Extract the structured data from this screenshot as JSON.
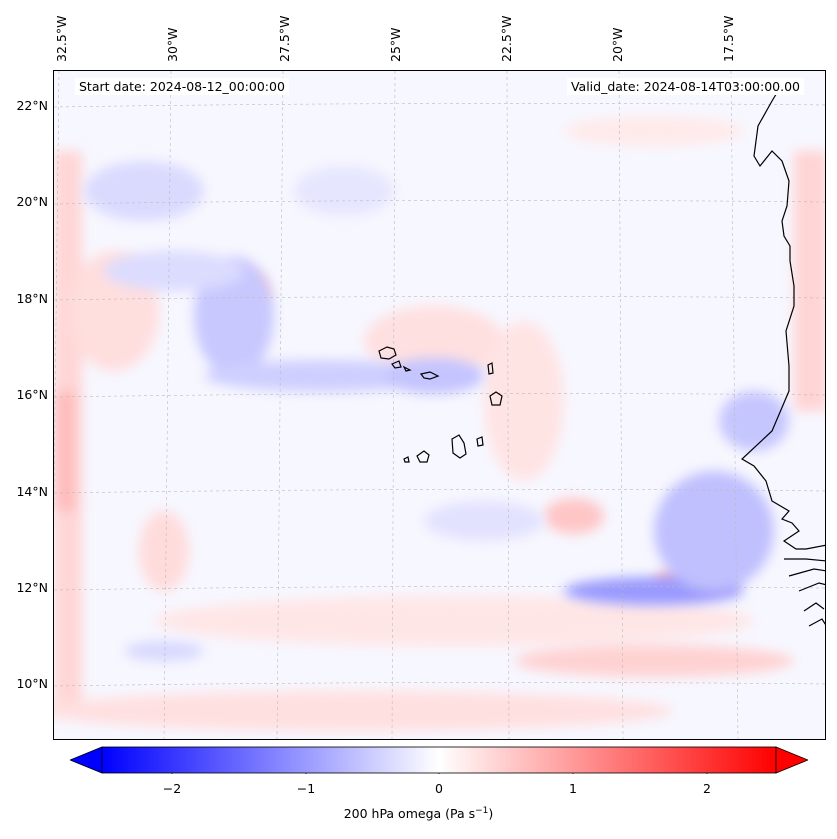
{
  "header": {
    "start_date": "Start date: 2024-08-12_00:00:00",
    "valid_date": "Valid_date: 2024-08-14T03:00:00.00"
  },
  "lon_labels": [
    "32.5°W",
    "30°W",
    "27.5°W",
    "25°W",
    "22.5°W",
    "20°W",
    "17.5°W"
  ],
  "lat_labels": [
    "22°N",
    "20°N",
    "18°N",
    "16°N",
    "14°N",
    "12°N",
    "10°N"
  ],
  "colorbar": {
    "ticks": [
      "−2",
      "−1",
      "0",
      "1",
      "2"
    ],
    "range": [
      -2.7,
      2.7
    ],
    "label_prefix": "200 hPa omega (Pa s",
    "label_sup": "−1",
    "label_suffix": ")",
    "colors": {
      "min": "#0000ff",
      "mid": "#ffffff",
      "max": "#ff0000"
    }
  },
  "map_data": {
    "region": "Eastern tropical North Atlantic, Cape Verde Islands and West African coast",
    "lat_range": [
      9,
      22.7
    ],
    "lon_range": [
      -33,
      -15.5
    ],
    "field": "200 hPa vertical velocity (omega)",
    "features": [
      "coastline",
      "cape-verde-islands",
      "graticule"
    ]
  }
}
